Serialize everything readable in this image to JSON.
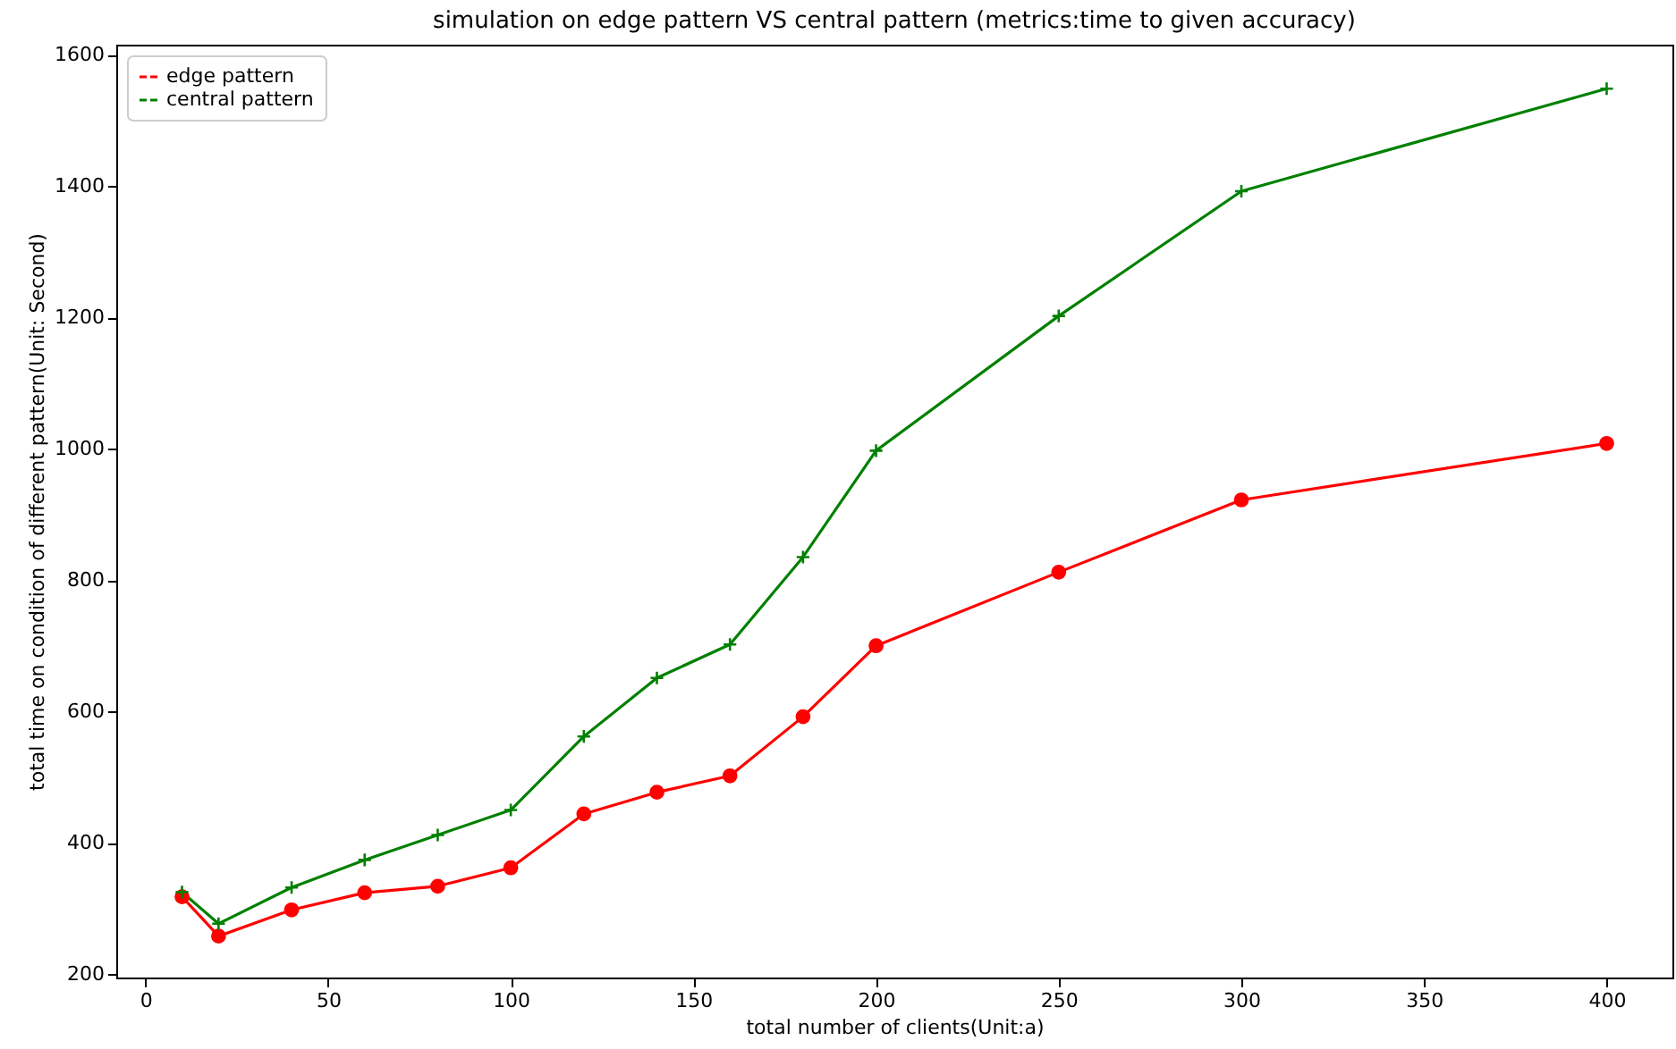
{
  "chart_data": {
    "type": "line",
    "title": "simulation on edge pattern VS central pattern (metrics:time to given accuracy)",
    "xlabel": "total number of clients(Unit:a)",
    "ylabel": "total time on condition of different pattern(Unit: Second)",
    "x": [
      10,
      20,
      40,
      60,
      80,
      100,
      120,
      140,
      160,
      180,
      200,
      250,
      300,
      400
    ],
    "series": [
      {
        "name": "edge pattern",
        "color": "#ff0000",
        "marker": "circle",
        "values": [
          318,
          258,
          298,
          324,
          334,
          362,
          444,
          477,
          502,
          592,
          700,
          812,
          922,
          1008
        ]
      },
      {
        "name": "central pattern",
        "color": "#008000",
        "marker": "cross",
        "values": [
          325,
          277,
          332,
          374,
          412,
          450,
          562,
          651,
          702,
          835,
          997,
          1202,
          1392,
          1548
        ]
      }
    ],
    "xlim": [
      -8,
      418
    ],
    "xticks": [
      0,
      50,
      100,
      150,
      200,
      250,
      300,
      350,
      400
    ],
    "ylim": [
      195,
      1615
    ],
    "yticks": [
      200,
      400,
      600,
      800,
      1000,
      1200,
      1400,
      1600
    ],
    "grid": false,
    "legend": "top left",
    "line_style": "solid"
  }
}
